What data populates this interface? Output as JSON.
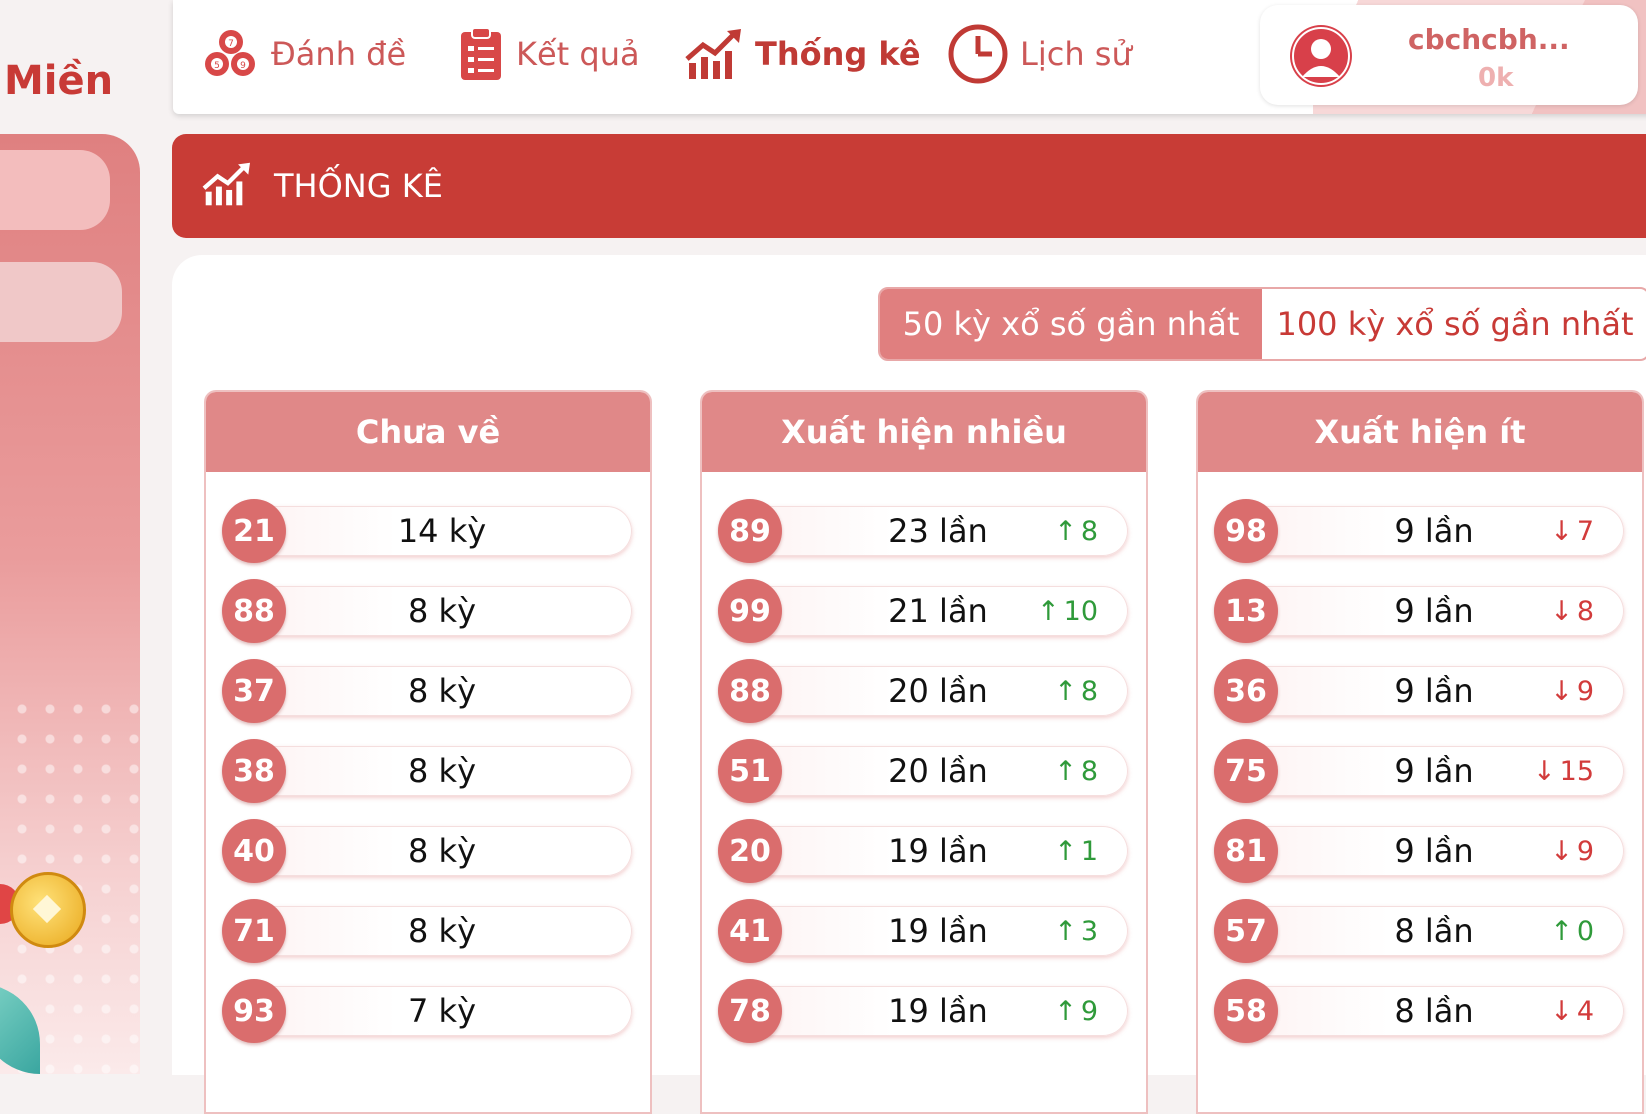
{
  "brand": {
    "label": "Miền"
  },
  "nav": {
    "items": [
      {
        "label": "Đánh đề",
        "icon": "lottery-balls-icon"
      },
      {
        "label": "Kết quả",
        "icon": "clipboard-list-icon"
      },
      {
        "label": "Thống kê",
        "icon": "chart-up-icon"
      },
      {
        "label": "Lịch sử",
        "icon": "clock-icon"
      }
    ],
    "active": "Thống kê"
  },
  "user": {
    "name": "cbchcbh...",
    "balance": "0k"
  },
  "banner": {
    "title": "THỐNG KÊ"
  },
  "range_toggle": {
    "options": [
      "50 kỳ xổ số gần nhất",
      "100 kỳ xổ số gần nhất"
    ],
    "selected": "50 kỳ xổ số gần nhất"
  },
  "columns": [
    {
      "title": "Chưa về",
      "rows": [
        {
          "num": "21",
          "value": "14 kỳ"
        },
        {
          "num": "88",
          "value": "8 kỳ"
        },
        {
          "num": "37",
          "value": "8 kỳ"
        },
        {
          "num": "38",
          "value": "8 kỳ"
        },
        {
          "num": "40",
          "value": "8 kỳ"
        },
        {
          "num": "71",
          "value": "8 kỳ"
        },
        {
          "num": "93",
          "value": "7 kỳ"
        }
      ]
    },
    {
      "title": "Xuất hiện nhiều",
      "rows": [
        {
          "num": "89",
          "value": "23 lần",
          "dir": "up",
          "delta": "8"
        },
        {
          "num": "99",
          "value": "21 lần",
          "dir": "up",
          "delta": "10"
        },
        {
          "num": "88",
          "value": "20 lần",
          "dir": "up",
          "delta": "8"
        },
        {
          "num": "51",
          "value": "20 lần",
          "dir": "up",
          "delta": "8"
        },
        {
          "num": "20",
          "value": "19 lần",
          "dir": "up",
          "delta": "1"
        },
        {
          "num": "41",
          "value": "19 lần",
          "dir": "up",
          "delta": "3"
        },
        {
          "num": "78",
          "value": "19 lần",
          "dir": "up",
          "delta": "9"
        }
      ]
    },
    {
      "title": "Xuất hiện ít",
      "rows": [
        {
          "num": "98",
          "value": "9 lần",
          "dir": "down",
          "delta": "7"
        },
        {
          "num": "13",
          "value": "9 lần",
          "dir": "down",
          "delta": "8"
        },
        {
          "num": "36",
          "value": "9 lần",
          "dir": "down",
          "delta": "9"
        },
        {
          "num": "75",
          "value": "9 lần",
          "dir": "down",
          "delta": "15"
        },
        {
          "num": "81",
          "value": "9 lần",
          "dir": "down",
          "delta": "9"
        },
        {
          "num": "57",
          "value": "8 lần",
          "dir": "up",
          "delta": "0"
        },
        {
          "num": "58",
          "value": "8 lần",
          "dir": "down",
          "delta": "4"
        }
      ]
    }
  ],
  "colors": {
    "primary": "#c83c36",
    "accent": "#e07f7f",
    "up": "#2f9a3a",
    "down": "#d23b3b"
  }
}
